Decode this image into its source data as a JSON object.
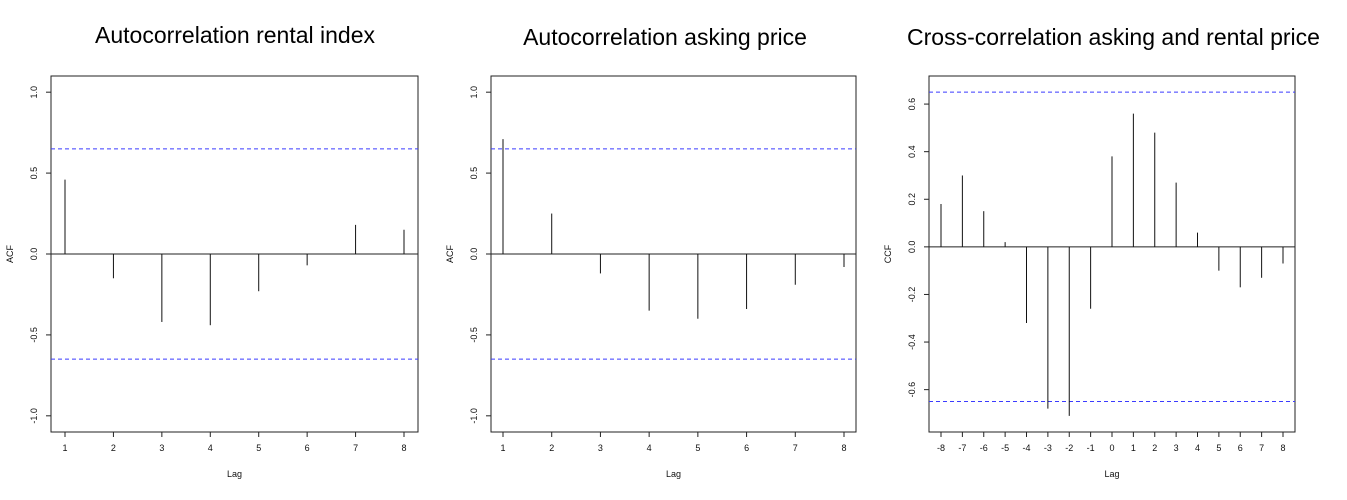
{
  "chart_data": [
    {
      "type": "bar",
      "title": "Autocorrelation rental index",
      "xlabel": "Lag",
      "ylabel": "ACF",
      "x": [
        1,
        2,
        3,
        4,
        5,
        6,
        7,
        8
      ],
      "values": [
        0.46,
        -0.15,
        -0.42,
        -0.44,
        -0.23,
        -0.07,
        0.18,
        0.15
      ],
      "xlim": [
        1,
        8
      ],
      "ylim": [
        -1.0,
        1.0
      ],
      "xticks": [
        "1",
        "2",
        "3",
        "4",
        "5",
        "6",
        "7",
        "8"
      ],
      "yticks": [
        "-1.0",
        "-0.5",
        "0.0",
        "0.5",
        "1.0"
      ],
      "confidence_bounds": [
        0.65,
        -0.65
      ],
      "bound_color": "#3b3bff",
      "grid": false
    },
    {
      "type": "bar",
      "title": "Autocorrelation asking price",
      "xlabel": "Lag",
      "ylabel": "ACF",
      "x": [
        1,
        2,
        3,
        4,
        5,
        6,
        7,
        8
      ],
      "values": [
        0.71,
        0.25,
        -0.12,
        -0.35,
        -0.4,
        -0.34,
        -0.19,
        -0.08
      ],
      "xlim": [
        1,
        8
      ],
      "ylim": [
        -1.0,
        1.0
      ],
      "xticks": [
        "1",
        "2",
        "3",
        "4",
        "5",
        "6",
        "7",
        "8"
      ],
      "yticks": [
        "-1.0",
        "-0.5",
        "0.0",
        "0.5",
        "1.0"
      ],
      "confidence_bounds": [
        0.65,
        -0.65
      ],
      "bound_color": "#3b3bff",
      "grid": false
    },
    {
      "type": "bar",
      "title": "Cross-correlation asking and rental price",
      "xlabel": "Lag",
      "ylabel": "CCF",
      "x": [
        -8,
        -7,
        -6,
        -5,
        -4,
        -3,
        -2,
        -1,
        0,
        1,
        2,
        3,
        4,
        5,
        6,
        7,
        8
      ],
      "values": [
        0.18,
        0.3,
        0.15,
        0.02,
        -0.32,
        -0.68,
        -0.71,
        -0.26,
        0.38,
        0.56,
        0.48,
        0.27,
        0.06,
        -0.1,
        -0.17,
        -0.13,
        -0.07
      ],
      "xlim": [
        -8,
        8
      ],
      "ylim": [
        -0.71,
        0.65
      ],
      "xticks": [
        "-8",
        "-7",
        "-6",
        "-5",
        "-4",
        "-3",
        "-2",
        "-1",
        "0",
        "1",
        "2",
        "3",
        "4",
        "5",
        "6",
        "7",
        "8"
      ],
      "yticks": [
        "-0.6",
        "-0.4",
        "-0.2",
        "0.0",
        "0.2",
        "0.4",
        "0.6"
      ],
      "ytick_values": [
        -0.6,
        -0.4,
        -0.2,
        0.0,
        0.2,
        0.4,
        0.6
      ],
      "confidence_bounds": [
        0.65,
        -0.65
      ],
      "bound_color": "#3b3bff",
      "grid": false
    }
  ]
}
